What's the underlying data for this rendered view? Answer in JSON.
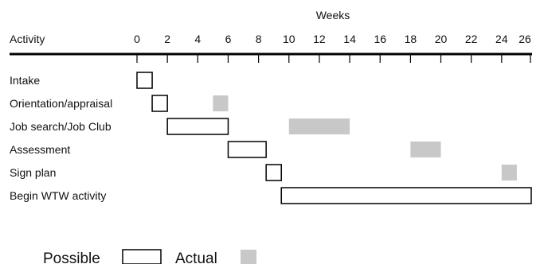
{
  "chart_data": {
    "type": "gantt",
    "x_axis_title": "Weeks",
    "category_header": "Activity",
    "xlim": [
      0,
      26
    ],
    "ticks": [
      0,
      2,
      4,
      6,
      8,
      10,
      12,
      14,
      16,
      18,
      20,
      22,
      24,
      26
    ],
    "tick_labels": [
      "0",
      "2",
      "4",
      "6",
      "8",
      "10",
      "12",
      "14",
      "16",
      "18",
      "20",
      "22",
      "24",
      "26"
    ],
    "activities": [
      {
        "label": "Intake",
        "possible": [
          0,
          1
        ],
        "actual": null
      },
      {
        "label": "Orientation/appraisal",
        "possible": [
          1,
          2
        ],
        "actual": [
          5,
          6
        ]
      },
      {
        "label": "Job search/Job Club",
        "possible": [
          2,
          6
        ],
        "actual": [
          10,
          14
        ]
      },
      {
        "label": "Assessment",
        "possible": [
          6,
          8.5
        ],
        "actual": [
          18,
          20
        ]
      },
      {
        "label": "Sign plan",
        "possible": [
          8.5,
          9.5
        ],
        "actual": [
          24,
          25
        ]
      },
      {
        "label": "Begin WTW activity",
        "possible": [
          9.5,
          26
        ],
        "actual": null
      }
    ],
    "legend": {
      "possible": "Possible",
      "actual": "Actual"
    },
    "colors": {
      "possible_fill": "#ffffff",
      "possible_stroke": "#000000",
      "actual_fill": "#c8c8c8"
    }
  }
}
